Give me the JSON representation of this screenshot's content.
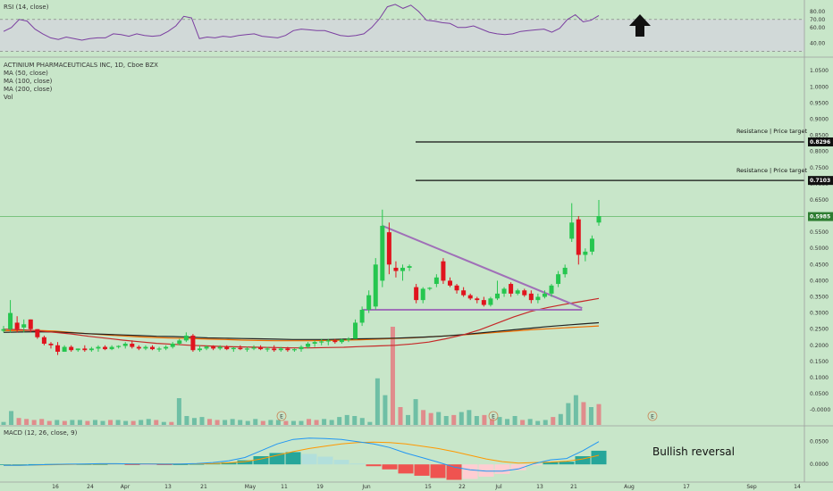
{
  "header": {
    "title": "ACTINIUM PHARMACEUTICALS INC, 1D, Cboe BZX",
    "ma50": "MA (50, close)",
    "ma100": "MA (100, close)",
    "ma200": "MA (200, close)",
    "vol": "Vol"
  },
  "rsi_title": "RSI (14, close)",
  "macd_title": "MACD (12, 26, close, 9)",
  "annotations": {
    "bullish_reversal": "Bullish reversal",
    "resistance_label": "Resistance | Price target",
    "earnings_marker": "E"
  },
  "colors": {
    "background": "#c8e6c9",
    "up": "#26c64f",
    "down": "#e0141e",
    "ma50": "#c62828",
    "ma100": "#ef6c00",
    "ma200": "#212121",
    "rsi": "#7b3fa0",
    "triangle": "#a070b8",
    "vol_up": "#6fbfa5",
    "vol_down": "#e08c8c",
    "macd_line": "#2196f3",
    "signal_line": "#ff9800"
  },
  "chart_data": [
    {
      "type": "candlestick",
      "title": "ACTINIUM PHARMACEUTICALS INC, 1D, Cboe BZX",
      "ylim": [
        -0.03,
        1.07
      ],
      "y_ticks": [
        "1.0500",
        "1.0000",
        "0.9500",
        "0.9000",
        "0.8500",
        "0.8000",
        "0.7500",
        "0.7000",
        "0.6500",
        "0.6000",
        "0.5500",
        "0.5000",
        "0.4500",
        "0.4000",
        "0.3500",
        "0.3000",
        "0.2500",
        "0.2000",
        "0.1500",
        "0.1000",
        "0.0500",
        "-0.0000"
      ],
      "x_ticks": [
        "16",
        "24",
        "Apr",
        "13",
        "21",
        "May",
        "11",
        "19",
        "Jun",
        "15",
        "22",
        "Jul",
        "13",
        "21",
        "Aug",
        "17",
        "Sep",
        "14"
      ],
      "price_tags": [
        "0.8296",
        "0.7103",
        "0.5985"
      ],
      "resistance_levels": [
        0.8296,
        0.7103
      ],
      "last_price": 0.5985,
      "candles": [
        {
          "o": 0.245,
          "h": 0.26,
          "l": 0.24,
          "c": 0.25
        },
        {
          "o": 0.25,
          "h": 0.34,
          "l": 0.24,
          "c": 0.3
        },
        {
          "o": 0.27,
          "h": 0.29,
          "l": 0.24,
          "c": 0.25
        },
        {
          "o": 0.255,
          "h": 0.28,
          "l": 0.24,
          "c": 0.265
        },
        {
          "o": 0.28,
          "h": 0.28,
          "l": 0.24,
          "c": 0.25
        },
        {
          "o": 0.25,
          "h": 0.25,
          "l": 0.22,
          "c": 0.225
        },
        {
          "o": 0.225,
          "h": 0.23,
          "l": 0.2,
          "c": 0.205
        },
        {
          "o": 0.205,
          "h": 0.21,
          "l": 0.19,
          "c": 0.2
        },
        {
          "o": 0.2,
          "h": 0.21,
          "l": 0.17,
          "c": 0.18
        },
        {
          "o": 0.18,
          "h": 0.2,
          "l": 0.18,
          "c": 0.195
        },
        {
          "o": 0.195,
          "h": 0.2,
          "l": 0.18,
          "c": 0.185
        },
        {
          "o": 0.185,
          "h": 0.19,
          "l": 0.18,
          "c": 0.19
        },
        {
          "o": 0.19,
          "h": 0.2,
          "l": 0.18,
          "c": 0.185
        },
        {
          "o": 0.185,
          "h": 0.195,
          "l": 0.18,
          "c": 0.19
        },
        {
          "o": 0.19,
          "h": 0.2,
          "l": 0.18,
          "c": 0.195
        },
        {
          "o": 0.195,
          "h": 0.2,
          "l": 0.185,
          "c": 0.188
        },
        {
          "o": 0.188,
          "h": 0.2,
          "l": 0.185,
          "c": 0.195
        },
        {
          "o": 0.195,
          "h": 0.2,
          "l": 0.19,
          "c": 0.198
        },
        {
          "o": 0.198,
          "h": 0.21,
          "l": 0.19,
          "c": 0.205
        },
        {
          "o": 0.205,
          "h": 0.215,
          "l": 0.19,
          "c": 0.195
        },
        {
          "o": 0.195,
          "h": 0.2,
          "l": 0.185,
          "c": 0.19
        },
        {
          "o": 0.19,
          "h": 0.2,
          "l": 0.185,
          "c": 0.195
        },
        {
          "o": 0.195,
          "h": 0.2,
          "l": 0.185,
          "c": 0.188
        },
        {
          "o": 0.188,
          "h": 0.195,
          "l": 0.18,
          "c": 0.19
        },
        {
          "o": 0.19,
          "h": 0.2,
          "l": 0.185,
          "c": 0.195
        },
        {
          "o": 0.195,
          "h": 0.21,
          "l": 0.19,
          "c": 0.205
        },
        {
          "o": 0.205,
          "h": 0.22,
          "l": 0.2,
          "c": 0.215
        },
        {
          "o": 0.215,
          "h": 0.24,
          "l": 0.21,
          "c": 0.23
        },
        {
          "o": 0.23,
          "h": 0.235,
          "l": 0.18,
          "c": 0.185
        },
        {
          "o": 0.185,
          "h": 0.2,
          "l": 0.18,
          "c": 0.19
        },
        {
          "o": 0.19,
          "h": 0.2,
          "l": 0.185,
          "c": 0.196
        },
        {
          "o": 0.196,
          "h": 0.2,
          "l": 0.185,
          "c": 0.19
        },
        {
          "o": 0.19,
          "h": 0.2,
          "l": 0.185,
          "c": 0.195
        },
        {
          "o": 0.195,
          "h": 0.2,
          "l": 0.185,
          "c": 0.188
        },
        {
          "o": 0.188,
          "h": 0.195,
          "l": 0.18,
          "c": 0.192
        },
        {
          "o": 0.192,
          "h": 0.2,
          "l": 0.185,
          "c": 0.188
        },
        {
          "o": 0.188,
          "h": 0.195,
          "l": 0.18,
          "c": 0.19
        },
        {
          "o": 0.19,
          "h": 0.2,
          "l": 0.185,
          "c": 0.193
        },
        {
          "o": 0.193,
          "h": 0.2,
          "l": 0.185,
          "c": 0.188
        },
        {
          "o": 0.188,
          "h": 0.195,
          "l": 0.18,
          "c": 0.19
        },
        {
          "o": 0.19,
          "h": 0.2,
          "l": 0.18,
          "c": 0.185
        },
        {
          "o": 0.185,
          "h": 0.195,
          "l": 0.18,
          "c": 0.19
        },
        {
          "o": 0.19,
          "h": 0.195,
          "l": 0.18,
          "c": 0.185
        },
        {
          "o": 0.185,
          "h": 0.19,
          "l": 0.18,
          "c": 0.188
        },
        {
          "o": 0.188,
          "h": 0.2,
          "l": 0.18,
          "c": 0.195
        },
        {
          "o": 0.195,
          "h": 0.21,
          "l": 0.19,
          "c": 0.205
        },
        {
          "o": 0.205,
          "h": 0.215,
          "l": 0.195,
          "c": 0.21
        },
        {
          "o": 0.21,
          "h": 0.22,
          "l": 0.2,
          "c": 0.212
        },
        {
          "o": 0.212,
          "h": 0.22,
          "l": 0.2,
          "c": 0.215
        },
        {
          "o": 0.215,
          "h": 0.22,
          "l": 0.205,
          "c": 0.21
        },
        {
          "o": 0.21,
          "h": 0.22,
          "l": 0.205,
          "c": 0.218
        },
        {
          "o": 0.218,
          "h": 0.225,
          "l": 0.21,
          "c": 0.22
        },
        {
          "o": 0.22,
          "h": 0.28,
          "l": 0.22,
          "c": 0.27
        },
        {
          "o": 0.27,
          "h": 0.32,
          "l": 0.26,
          "c": 0.31
        },
        {
          "o": 0.31,
          "h": 0.37,
          "l": 0.3,
          "c": 0.355
        },
        {
          "o": 0.32,
          "h": 0.47,
          "l": 0.31,
          "c": 0.45
        },
        {
          "o": 0.4,
          "h": 0.62,
          "l": 0.38,
          "c": 0.57
        },
        {
          "o": 0.55,
          "h": 0.58,
          "l": 0.42,
          "c": 0.45
        },
        {
          "o": 0.44,
          "h": 0.46,
          "l": 0.41,
          "c": 0.43
        },
        {
          "o": 0.43,
          "h": 0.45,
          "l": 0.4,
          "c": 0.44
        },
        {
          "o": 0.44,
          "h": 0.45,
          "l": 0.43,
          "c": 0.445
        },
        {
          "o": 0.38,
          "h": 0.39,
          "l": 0.33,
          "c": 0.34
        },
        {
          "o": 0.34,
          "h": 0.38,
          "l": 0.33,
          "c": 0.375
        },
        {
          "o": 0.375,
          "h": 0.38,
          "l": 0.37,
          "c": 0.378
        },
        {
          "o": 0.39,
          "h": 0.42,
          "l": 0.38,
          "c": 0.41
        },
        {
          "o": 0.46,
          "h": 0.47,
          "l": 0.39,
          "c": 0.4
        },
        {
          "o": 0.4,
          "h": 0.41,
          "l": 0.38,
          "c": 0.385
        },
        {
          "o": 0.385,
          "h": 0.39,
          "l": 0.36,
          "c": 0.37
        },
        {
          "o": 0.37,
          "h": 0.38,
          "l": 0.35,
          "c": 0.355
        },
        {
          "o": 0.355,
          "h": 0.36,
          "l": 0.34,
          "c": 0.345
        },
        {
          "o": 0.345,
          "h": 0.35,
          "l": 0.33,
          "c": 0.34
        },
        {
          "o": 0.34,
          "h": 0.35,
          "l": 0.32,
          "c": 0.325
        },
        {
          "o": 0.325,
          "h": 0.35,
          "l": 0.32,
          "c": 0.345
        },
        {
          "o": 0.345,
          "h": 0.4,
          "l": 0.34,
          "c": 0.36
        },
        {
          "o": 0.36,
          "h": 0.38,
          "l": 0.35,
          "c": 0.375
        },
        {
          "o": 0.39,
          "h": 0.395,
          "l": 0.35,
          "c": 0.36
        },
        {
          "o": 0.36,
          "h": 0.375,
          "l": 0.355,
          "c": 0.37
        },
        {
          "o": 0.37,
          "h": 0.375,
          "l": 0.35,
          "c": 0.355
        },
        {
          "o": 0.36,
          "h": 0.37,
          "l": 0.33,
          "c": 0.34
        },
        {
          "o": 0.34,
          "h": 0.36,
          "l": 0.33,
          "c": 0.35
        },
        {
          "o": 0.35,
          "h": 0.37,
          "l": 0.345,
          "c": 0.36
        },
        {
          "o": 0.36,
          "h": 0.39,
          "l": 0.35,
          "c": 0.385
        },
        {
          "o": 0.39,
          "h": 0.43,
          "l": 0.38,
          "c": 0.42
        },
        {
          "o": 0.42,
          "h": 0.45,
          "l": 0.41,
          "c": 0.44
        },
        {
          "o": 0.53,
          "h": 0.64,
          "l": 0.52,
          "c": 0.58
        },
        {
          "o": 0.59,
          "h": 0.6,
          "l": 0.45,
          "c": 0.48
        },
        {
          "o": 0.48,
          "h": 0.5,
          "l": 0.46,
          "c": 0.49
        },
        {
          "o": 0.49,
          "h": 0.54,
          "l": 0.48,
          "c": 0.53
        },
        {
          "o": 0.58,
          "h": 0.65,
          "l": 0.57,
          "c": 0.6
        }
      ],
      "ma50": [
        0.25,
        0.248,
        0.245,
        0.24,
        0.235,
        0.228,
        0.222,
        0.216,
        0.211,
        0.206,
        0.203,
        0.2,
        0.198,
        0.196,
        0.195,
        0.194,
        0.193,
        0.192,
        0.192,
        0.193,
        0.194,
        0.196,
        0.198,
        0.2,
        0.204,
        0.21,
        0.22,
        0.232,
        0.248,
        0.268,
        0.288,
        0.305,
        0.317,
        0.327,
        0.336,
        0.345
      ],
      "ma100": [
        0.245,
        0.246,
        0.246,
        0.244,
        0.24,
        0.236,
        0.232,
        0.229,
        0.226,
        0.224,
        0.222,
        0.221,
        0.219,
        0.218,
        0.216,
        0.215,
        0.214,
        0.214,
        0.214,
        0.215,
        0.216,
        0.217,
        0.219,
        0.221,
        0.223,
        0.226,
        0.229,
        0.232,
        0.236,
        0.24,
        0.244,
        0.248,
        0.251,
        0.254,
        0.257,
        0.26
      ],
      "ma200": [
        0.24,
        0.241,
        0.242,
        0.241,
        0.239,
        0.236,
        0.234,
        0.232,
        0.23,
        0.228,
        0.227,
        0.225,
        0.223,
        0.222,
        0.221,
        0.22,
        0.219,
        0.218,
        0.218,
        0.218,
        0.219,
        0.22,
        0.221,
        0.222,
        0.224,
        0.226,
        0.229,
        0.233,
        0.238,
        0.243,
        0.248,
        0.253,
        0.258,
        0.262,
        0.266,
        0.27
      ],
      "triangle": {
        "apex_high": 0.57,
        "apex_low": 0.31,
        "right": 0.315
      }
    },
    {
      "type": "line",
      "title": "RSI (14, close)",
      "ylim": [
        25,
        90
      ],
      "y_ticks": [
        "80.00",
        "70.00",
        "60.00",
        "40.00"
      ],
      "band": [
        30,
        70
      ],
      "values": [
        55,
        60,
        70,
        68,
        58,
        52,
        47,
        45,
        48,
        46,
        44,
        46,
        47,
        47,
        52,
        51,
        49,
        52,
        50,
        49,
        50,
        55,
        62,
        74,
        72,
        46,
        48,
        47,
        49,
        48,
        50,
        51,
        52,
        49,
        48,
        47,
        50,
        56,
        58,
        57,
        56,
        56,
        53,
        50,
        49,
        50,
        52,
        60,
        71,
        86,
        89,
        84,
        88,
        80,
        69,
        68,
        66,
        65,
        60,
        60,
        62,
        58,
        54,
        52,
        51,
        52,
        55,
        56,
        57,
        58,
        54,
        59,
        70,
        76,
        67,
        69,
        75
      ]
    },
    {
      "type": "bar",
      "title": "Vol",
      "values": [
        3,
        14,
        7,
        6,
        5,
        6,
        4,
        5,
        4,
        5,
        5,
        4,
        5,
        4,
        5,
        5,
        4,
        4,
        5,
        6,
        5,
        3,
        3,
        27,
        9,
        7,
        8,
        6,
        5,
        5,
        6,
        5,
        4,
        6,
        4,
        5,
        5,
        4,
        4,
        4,
        6,
        5,
        6,
        5,
        8,
        10,
        9,
        7,
        3,
        47,
        30,
        99,
        18,
        10,
        26,
        15,
        12,
        13,
        9,
        10,
        13,
        15,
        9,
        10,
        6,
        8,
        6,
        9,
        5,
        6,
        4,
        5,
        8,
        11,
        22,
        30,
        23,
        18,
        21
      ],
      "directions": [
        "u",
        "u",
        "d",
        "d",
        "d",
        "d",
        "d",
        "u",
        "d",
        "u",
        "u",
        "d",
        "u",
        "u",
        "d",
        "u",
        "u",
        "d",
        "u",
        "u",
        "d",
        "u",
        "d",
        "u",
        "u",
        "u",
        "u",
        "d",
        "d",
        "u",
        "u",
        "u",
        "u",
        "u",
        "d",
        "u",
        "u",
        "d",
        "u",
        "u",
        "d",
        "d",
        "u",
        "u",
        "u",
        "u",
        "u",
        "u",
        "u",
        "u",
        "u",
        "d",
        "d",
        "u",
        "u",
        "d",
        "d",
        "u",
        "u",
        "d",
        "u",
        "u",
        "u",
        "d",
        "d",
        "u",
        "u",
        "u",
        "d",
        "u",
        "u",
        "u",
        "d",
        "u",
        "u",
        "u",
        "d",
        "u",
        "d"
      ]
    },
    {
      "type": "line",
      "title": "MACD (12, 26, close, 9)",
      "ylim": [
        -0.035,
        0.075
      ],
      "y_ticks": [
        "0.0500",
        "0.0000"
      ],
      "macd": [
        -0.002,
        -0.002,
        -0.001,
        0,
        0.0005,
        0.001,
        0.0015,
        0.0015,
        0.001,
        0.001,
        0.0005,
        0.001,
        0.002,
        0.004,
        0.008,
        0.015,
        0.03,
        0.045,
        0.055,
        0.058,
        0.057,
        0.055,
        0.05,
        0.045,
        0.037,
        0.025,
        0.015,
        0.005,
        -0.006,
        -0.012,
        -0.015,
        -0.015,
        -0.01,
        0.002,
        0.01,
        0.013,
        0.03,
        0.05
      ],
      "signal": [
        -0.002,
        -0.002,
        -0.0015,
        -0.0008,
        0,
        0.0005,
        0.001,
        0.0012,
        0.0012,
        0.0011,
        0.001,
        0.001,
        0.0012,
        0.002,
        0.0035,
        0.006,
        0.012,
        0.02,
        0.028,
        0.035,
        0.04,
        0.045,
        0.048,
        0.049,
        0.048,
        0.045,
        0.04,
        0.035,
        0.028,
        0.02,
        0.012,
        0.006,
        0.003,
        0.004,
        0.005,
        0.007,
        0.012,
        0.02
      ]
    }
  ]
}
